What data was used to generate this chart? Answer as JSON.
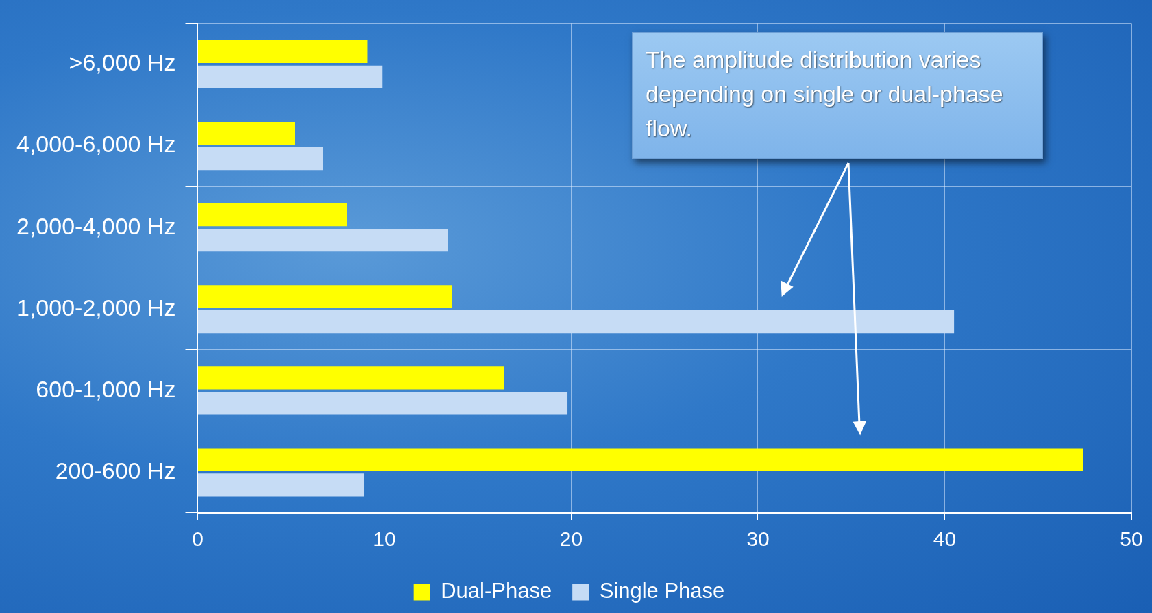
{
  "chart_data": {
    "type": "bar",
    "orientation": "horizontal",
    "categories": [
      ">6,000 Hz",
      "4,000-6,000 Hz",
      "2,000-4,000 Hz",
      "1,000-2,000 Hz",
      "600-1,000 Hz",
      "200-600 Hz"
    ],
    "series": [
      {
        "name": "Dual-Phase",
        "color": "#ffff00",
        "values": [
          9.1,
          5.2,
          8.0,
          13.6,
          16.4,
          47.4
        ]
      },
      {
        "name": "Single Phase",
        "color": "#c6dcf5",
        "values": [
          9.9,
          6.7,
          13.4,
          40.5,
          19.8,
          8.9
        ]
      }
    ],
    "xlim": [
      0,
      50
    ],
    "xticks": [
      0,
      10,
      20,
      30,
      40,
      50
    ],
    "grid": true,
    "legend": "bottom",
    "annotations": [
      "The amplitude distribution varies depending on single or dual-phase flow."
    ]
  }
}
